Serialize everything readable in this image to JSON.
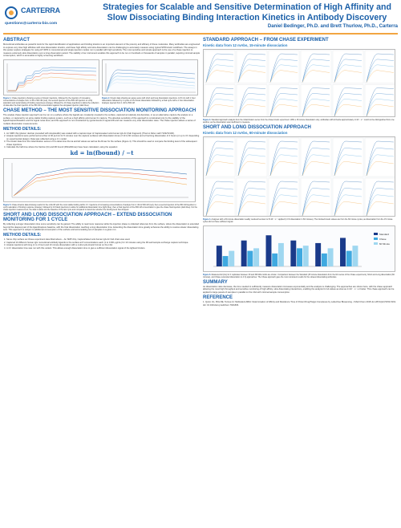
{
  "header": {
    "logo_text": "CARTERRA",
    "email": "questions@carterra-bio.com",
    "title": "Strategies for Scalable and Sensitive Determination of High Affinity and Slow Dissociating Binding Interaction Kinetics in Antibody Discovery",
    "authors": "Daniel Bedinger, Ph.D. and Brett Thurlow, Ph.D., Carterra"
  },
  "abstract": {
    "heading": "ABSTRACT",
    "text": "Monoclonal antibodies as powerful tools for the rapid identification of applications and binding kinetics is an important element of the potency and efficacy of these molecules. Many antibodies are engineered to express very slow high affinities with slow dissociation kinetics, and these high affinity and slow dissociation can be challenging to accurately measure using typical SPR kinetic workflows. The assays in this poster explore strategies for using HT-SPR in conventional and single-injection modes run in parallel with high sensitivity. The most sensitive and simple approach is the use of a chase injection to measure extremely slow dissociation over a long observation period. The stability of our instrument enables this approach to be run on hundreds or thousands of samples in parallel, requiring minimal sample consumption, which is amenable to highly screening workflows."
  },
  "fig1": {
    "label": "Figure 1.",
    "caption": "Chase injections showing a series of kinetic injections, followed by the injection of increasing concentrations of analyte from 1 nM to 500 nM (red), the second injection of the 800 nM injection to verify saturation and serial dosing of binding responses (orange), followed by 10 chase injections to allow the collection of data after the final injection of the 800 nM concentration against the elongated injection (dark blue)."
  },
  "fig2": {
    "label": "Figure 2.",
    "caption": "Kinetic data showing an assay setup with short and long dissociation injections. A 15 min with 1 hour dissociation followed by 4 cycles of 15-minute dissociation followed by a final cycle with a 1 hour dissociation. Analytes injected from 1 nM to 500 nM."
  },
  "chase": {
    "heading": "CHASE METHOD – THE MOST SENSITIVE DISSOCIATION MONITORING APPROACH",
    "text": "The analyte chase injection approach can be run on a surface where the ligands are covalently coupled to the surface, captured at relatively low densities, or as an alternative capture the analyte on a surface, or captured by an array stable binding capture system, such as a high affinity anti-human Fc capture. The absolute sensitivity of this approach is constrained only by the stability of the ligand/capture/baseline and the signal noise level, and this approach is not constrained by typical levels of signal drift and can measure very slow dissociation rates. The chase injection allows a series of multiple dissociation measurements.",
    "methods_heading": "METHOD DETAILS:",
    "methods": [
      "An SMP chip (planar: dextran preceded with streptavidin) was coated with a capture layer of Captureselect anti-human IgG-Fc (Fab fragment) (Thermo fisher cat# 7103272100).",
      "Analyte injections were performed at a flow of 30 μL/min for 5 minutes over the capture surfaces with dissociation times of 10 to 60 minutes and a final long dissociation of 4 hours (or up to 3 h depending on experimental design). Data was collected using a 1:1 model.",
      "The kinetic data from the initial titration series is fit to determine the ka and kd values as well as the Rmax for the surface (Figure 4). This should be used to compare the binding level of the subsequent chase injections.",
      "Calculate the half-time where the fraction (bt) and R0 bound (Rbind/Rmax) have been calculated, using the equation:"
    ],
    "formula": "kd = ln(fbound) / −t",
    "fig5_label": "Figure 5.",
    "fig5_caption": "Chase kinetics data showing results for the mAb-60 with the most stable binding within 4 h. Injections of increasing concentrations of analyte from 1 nM to 500 nM (red), then a second injection of the 800 nM injection to verify saturation of binding response (orange), followed by 10 blank injections to allow for additional dissociation time (light blue), then a final injection of the 800 nM concentration to give the chase final injection (dark blue). For the chase injection measurement, the data is aside and the baseline of the last cycle and compared to determine whether the binding level has dropped."
  },
  "shortlong": {
    "heading": "SHORT AND LONG DISSOCIATION APPROACH – EXTEND DISSOCIATION MONITORING FOR 1 CYCLE",
    "text": "By collecting a longer dissociation time some sensitivity can be gained. The ability to read more response while the injection phase is collected reference from the surface, where the dissociation is extended beyond the deepest part of the ligand/capture baseline, with the final dissociation reaching a long dissociation time. Extending the dissociation time greatly enhances the ability to resolve slower dissociating sets. This approach is subject to additional consumption of the surface and accumulating set of samples in a given run.",
    "methods_heading": "METHOD DETAILS:",
    "methods": [
      "Same chip surface as Chase experiment described above – An SMP chip, CaptureSelect anti-human IgG-Fc Fab chain was used.",
      "Captured 10 different human IgG monoclonal antibody ligands to the surface at 8 concentrations each (1 to 0.001 μg/mL) for 10 minutes using the 96-well sample exchange capture technique.",
      "Analyte injections with long (1 to 4 hour) and 10 minute dissociation with a multi-cycle kinetic format on the LSA.",
      "A 4 h dissociation time was run with this variant. This allows enough dissociation time to give a sufficient dissociation signal of the tightest binders."
    ]
  },
  "standard": {
    "heading": "STANDARD APPROACH – FROM CHASE EXPERIMENT",
    "sub": "Kinetic data from 12 mAbs, 15-minute dissociation",
    "fig3_label": "Figure 3.",
    "fig3_caption": "Standard approach analysis from the initial titration series from the chase kinetic experiment. With a 15-minute dissociation only, antibodies with kd below approximately 1×10⁻⁵ s⁻¹ could not be distinguished from one another, as the dissociation was insufficient to measure."
  },
  "short_long": {
    "heading": "SHORT AND LONG DISSOCIATION APPROACH",
    "sub": "Kinetic data from 12 mAbs, 60-minute dissociation",
    "fig4_label": "Figure 4.",
    "fig4_caption": "Analyses with a 60-minute dissociation readily resolved ka down to 5×10⁻⁶ s⁻¹ applied (1:1% dissociation in 60 minutes). The blocked kinetic values are from the 60 minute cycles, as dissociation from the 15 minute cycles did not have sufficient signal.",
    "fig6_label": "Figure 6.",
    "fig6_caption": "Measured kd (1/s) for 4 replicates between 30 and 300 kDa mAbs are shown. Comparison between the Standard (15 minute dissociation from the first series of the Chase experiment), Short and Long dissociation (60 minutes), and Chase (extended dissociation to 4 h) approaches. The Chase approach gave the most consistent results for the slowest dissociating antibodies.",
    "legend": [
      "Standard",
      "Chase",
      "60 Minute"
    ],
    "legend_colors": [
      "#1a3a8a",
      "#3fa9e0",
      "#9fd7f0"
    ]
  },
  "summary": {
    "heading": "SUMMARY",
    "text": "As dissociation rates decrease, the time needed to sufficiently measure dissociation increases exponentially and the analysis is challenging. The approaches are shown here, with the chase approach allowing the most high throughput and sensitive monitoring of high affinity, slow dissociating interactions, enabling the analysis for kd values as slow as 1×10⁻⁷ s⁻¹ or better. This chase approach can be applied to large panels of samples in parallel on the LSA with minimal sample consumption."
  },
  "reference": {
    "heading": "REFERENCE",
    "text": "1. Quinn JG, Pitts RE, Ternes AJ. Multivalent-MRA: Determination of Affinity and Residence Time of Potent Drug/Target Complexes by Label-free Biosensing. J Med Chem 2018 Jun 28;61(12):5154-5161. doi: 10.1021/acs.jmedchem.7b01829."
  },
  "chart_data": [
    {
      "type": "bar",
      "title": "",
      "series": [
        {
          "name": "Standard",
          "values": [
            0.8,
            1.0,
            1.2,
            1.0,
            0.9,
            1.1
          ]
        },
        {
          "name": "Chase",
          "values": [
            0.4,
            0.6,
            0.5,
            0.7,
            0.5,
            0.6
          ]
        },
        {
          "name": "60 Minute",
          "values": [
            0.6,
            0.7,
            0.9,
            0.8,
            0.7,
            0.8
          ]
        }
      ]
    }
  ]
}
